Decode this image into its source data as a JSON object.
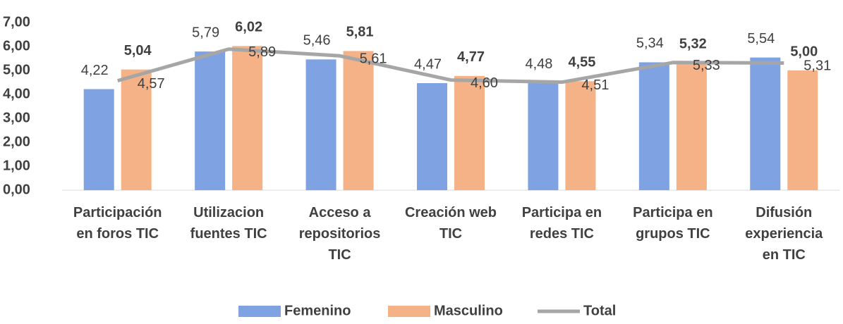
{
  "chart_data": {
    "type": "bar_line",
    "categories": [
      "Participación\nen foros TIC",
      "Utilizacion\nfuentes TIC",
      "Acceso a\nrepositorios\nTIC",
      "Creación web\nTIC",
      "Participa en\nredes TIC",
      "Participa en\ngrupos TIC",
      "Difusión\nexperiencia\nen TIC"
    ],
    "series": [
      {
        "name": "Femenino",
        "color": "#7fa2e2",
        "type": "bar",
        "values": [
          4.22,
          5.79,
          5.46,
          4.47,
          4.48,
          5.34,
          5.54
        ],
        "value_labels": [
          "4,22",
          "5,79",
          "5,46",
          "4,47",
          "4,48",
          "5,34",
          "5,54"
        ]
      },
      {
        "name": "Masculino",
        "color": "#f5b286",
        "type": "bar",
        "values": [
          5.04,
          6.02,
          5.81,
          4.77,
          4.55,
          5.32,
          5.0
        ],
        "value_labels": [
          "5,04",
          "6,02",
          "5,81",
          "4,77",
          "4,55",
          "5,32",
          "5,00"
        ]
      },
      {
        "name": "Total",
        "color": "#a6a6a6",
        "type": "line",
        "values": [
          4.57,
          5.89,
          5.61,
          4.6,
          4.51,
          5.33,
          5.31
        ],
        "value_labels": [
          "4,57",
          "5,89",
          "5,61",
          "4,60",
          "4,51",
          "5,33",
          "5,31"
        ]
      }
    ],
    "ylim": [
      0,
      7
    ],
    "yticks": [
      {
        "value": 0,
        "label": "0,00"
      },
      {
        "value": 1,
        "label": "1,00"
      },
      {
        "value": 2,
        "label": "2,00"
      },
      {
        "value": 3,
        "label": "3,00"
      },
      {
        "value": 4,
        "label": "4,00"
      },
      {
        "value": 5,
        "label": "5,00"
      },
      {
        "value": 6,
        "label": "6,00"
      },
      {
        "value": 7,
        "label": "7,00"
      }
    ],
    "legend": "bottom"
  }
}
